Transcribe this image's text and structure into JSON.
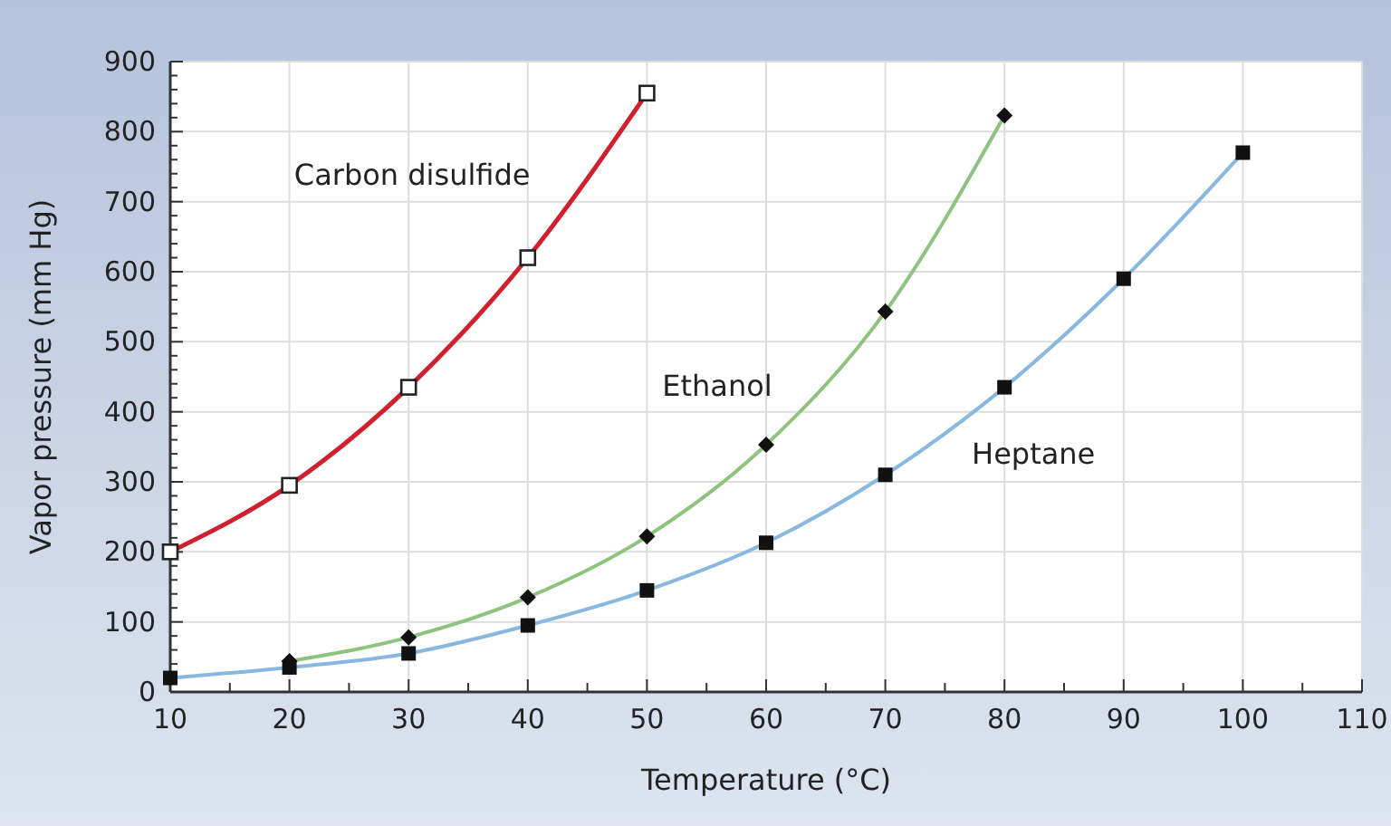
{
  "chart_data": {
    "type": "line",
    "xlabel": "Temperature (°C)",
    "ylabel": "Vapor pressure (mm Hg)",
    "xlim": [
      10,
      110
    ],
    "xticks": [
      10,
      20,
      30,
      40,
      50,
      60,
      70,
      80,
      90,
      100,
      110
    ],
    "ylim": [
      0,
      900
    ],
    "yticks": [
      0,
      100,
      200,
      300,
      400,
      500,
      600,
      700,
      800,
      900
    ],
    "grid": true,
    "series": [
      {
        "name": "Carbon disulfide",
        "color": "#d0202e",
        "marker": "square",
        "x": [
          10,
          20,
          30,
          40,
          50
        ],
        "values": [
          200,
          295,
          435,
          620,
          855
        ]
      },
      {
        "name": "Ethanol",
        "color": "#8dc37e",
        "marker": "diamond",
        "x": [
          20,
          30,
          40,
          50,
          60,
          70,
          80
        ],
        "values": [
          44,
          78,
          135,
          222,
          353,
          543,
          823
        ]
      },
      {
        "name": "Heptane",
        "color": "#88b8e0",
        "marker": "square",
        "x": [
          10,
          20,
          30,
          40,
          50,
          60,
          70,
          80,
          90,
          100
        ],
        "values": [
          20,
          35,
          55,
          95,
          145,
          213,
          310,
          435,
          590,
          770
        ]
      }
    ]
  }
}
